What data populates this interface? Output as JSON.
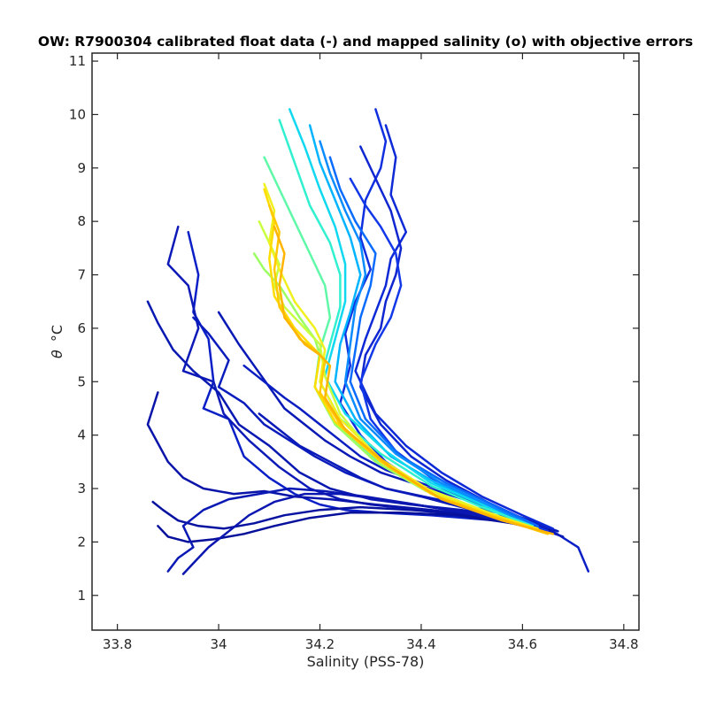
{
  "chart_data": {
    "type": "line",
    "title": "OW: R7900304 calibrated float data (-) and mapped salinity (o) with objective errors",
    "xlabel": "Salinity (PSS-78)",
    "ylabel_symbol": "θ",
    "ylabel_unit": "°C",
    "xlim": [
      33.75,
      34.83
    ],
    "ylim": [
      0.35,
      11.15
    ],
    "xticks": [
      33.8,
      34.0,
      34.2,
      34.4,
      34.6,
      34.8
    ],
    "xtick_labels": [
      "33.8",
      "34",
      "34.2",
      "34.4",
      "34.6",
      "34.8"
    ],
    "yticks": [
      1,
      2,
      3,
      4,
      5,
      6,
      7,
      8,
      9,
      10,
      11
    ],
    "ytick_labels": [
      "1",
      "2",
      "3",
      "4",
      "5",
      "6",
      "7",
      "8",
      "9",
      "10",
      "11"
    ],
    "grid": false,
    "colormap": [
      "#00008f",
      "#0020ff",
      "#00a0ff",
      "#30ffd0",
      "#a0ff60",
      "#ffe000",
      "#ffb000"
    ],
    "profiles_early": [
      {
        "color": "#0a1fc6",
        "s": [
          33.94,
          33.96,
          33.95,
          33.98,
          33.99,
          33.97,
          34.02,
          34.05,
          34.1,
          34.15,
          34.2,
          34.25,
          34.32,
          34.42,
          34.55,
          34.66,
          34.71,
          34.73
        ],
        "t": [
          7.8,
          7.0,
          6.3,
          5.8,
          5.0,
          4.5,
          4.3,
          3.6,
          3.2,
          2.9,
          2.7,
          2.6,
          2.55,
          2.5,
          2.4,
          2.2,
          1.9,
          1.45
        ]
      },
      {
        "color": "#0d1ab8",
        "s": [
          33.92,
          33.9,
          33.94,
          33.96,
          33.93,
          33.99,
          34.01,
          34.06,
          34.12,
          34.18,
          34.24,
          34.3,
          34.4,
          34.52,
          34.62,
          34.68
        ],
        "t": [
          7.9,
          7.2,
          6.8,
          6.0,
          5.2,
          5.0,
          4.4,
          3.9,
          3.4,
          3.0,
          2.8,
          2.7,
          2.6,
          2.45,
          2.3,
          2.1
        ]
      },
      {
        "color": "#0818b0",
        "s": [
          33.86,
          33.88,
          33.91,
          33.95,
          34.0,
          34.04,
          34.1,
          34.16,
          34.22,
          34.3,
          34.38,
          34.48,
          34.58,
          34.66
        ],
        "t": [
          6.5,
          6.1,
          5.6,
          5.2,
          4.8,
          4.2,
          3.8,
          3.3,
          3.0,
          2.8,
          2.7,
          2.6,
          2.45,
          2.2
        ]
      },
      {
        "color": "#0a14a8",
        "s": [
          33.88,
          33.86,
          33.9,
          33.93,
          33.97,
          34.03,
          34.09,
          34.15,
          34.22,
          34.31,
          34.42,
          34.54,
          34.64
        ],
        "t": [
          4.8,
          4.2,
          3.5,
          3.2,
          3.0,
          2.9,
          2.95,
          2.85,
          2.8,
          2.7,
          2.6,
          2.45,
          2.2
        ]
      },
      {
        "color": "#0712a0",
        "s": [
          33.87,
          33.89,
          33.92,
          33.96,
          34.01,
          34.07,
          34.13,
          34.2,
          34.28,
          34.38,
          34.5,
          34.62
        ],
        "t": [
          2.75,
          2.6,
          2.4,
          2.3,
          2.25,
          2.35,
          2.5,
          2.6,
          2.65,
          2.6,
          2.5,
          2.3
        ]
      },
      {
        "color": "#06109a",
        "s": [
          33.88,
          33.9,
          33.94,
          33.99,
          34.05,
          34.11,
          34.18,
          34.26,
          34.36,
          34.47,
          34.58,
          34.65
        ],
        "t": [
          2.3,
          2.1,
          2.0,
          2.05,
          2.15,
          2.3,
          2.45,
          2.55,
          2.55,
          2.5,
          2.35,
          2.2
        ]
      },
      {
        "color": "#0a18b4",
        "s": [
          33.9,
          33.92,
          33.95,
          33.93,
          33.97,
          34.02,
          34.08,
          34.14,
          34.21,
          34.29,
          34.39,
          34.51,
          34.61
        ],
        "t": [
          1.45,
          1.7,
          1.9,
          2.3,
          2.6,
          2.8,
          2.9,
          3.0,
          2.95,
          2.85,
          2.7,
          2.5,
          2.3
        ]
      },
      {
        "color": "#0c16b0",
        "s": [
          33.93,
          33.95,
          33.98,
          34.02,
          34.06,
          34.11,
          34.17,
          34.24,
          34.32,
          34.42,
          34.53,
          34.63
        ],
        "t": [
          1.4,
          1.6,
          1.9,
          2.2,
          2.5,
          2.75,
          2.9,
          2.9,
          2.8,
          2.65,
          2.5,
          2.25
        ]
      },
      {
        "color": "#0b1cbc",
        "s": [
          33.95,
          33.98,
          34.02,
          34.0,
          34.05,
          34.09,
          34.14,
          34.19,
          34.25,
          34.33,
          34.43,
          34.55,
          34.64
        ],
        "t": [
          6.2,
          5.9,
          5.4,
          4.9,
          4.6,
          4.2,
          3.9,
          3.6,
          3.3,
          3.0,
          2.8,
          2.55,
          2.25
        ]
      },
      {
        "color": "#0919b6",
        "s": [
          34.0,
          34.04,
          34.07,
          34.1,
          34.13,
          34.17,
          34.21,
          34.26,
          34.32,
          34.4,
          34.5,
          34.6,
          34.67
        ],
        "t": [
          6.3,
          5.7,
          5.3,
          4.9,
          4.5,
          4.2,
          3.9,
          3.6,
          3.3,
          3.05,
          2.75,
          2.45,
          2.2
        ]
      },
      {
        "color": "#0b1ec2",
        "s": [
          34.05,
          34.09,
          34.13,
          34.16,
          34.2,
          34.24,
          34.28,
          34.33,
          34.4,
          34.48,
          34.57,
          34.65
        ],
        "t": [
          5.3,
          5.0,
          4.7,
          4.5,
          4.2,
          3.9,
          3.6,
          3.35,
          3.1,
          2.85,
          2.55,
          2.25
        ]
      },
      {
        "color": "#0a1ab8",
        "s": [
          34.08,
          34.12,
          34.16,
          34.2,
          34.24,
          34.28,
          34.33,
          34.4,
          34.48,
          34.56,
          34.64
        ],
        "t": [
          4.4,
          4.1,
          3.8,
          3.6,
          3.4,
          3.2,
          3.0,
          2.85,
          2.65,
          2.45,
          2.2
        ]
      },
      {
        "color": "#1030e0",
        "s": [
          34.31,
          34.33,
          34.32,
          34.29,
          34.28,
          34.3,
          34.27,
          34.25,
          34.26,
          34.24,
          34.28,
          34.33,
          34.4,
          34.48,
          34.56,
          34.64
        ],
        "t": [
          10.1,
          9.5,
          9.0,
          8.4,
          7.7,
          7.1,
          6.5,
          5.9,
          5.3,
          4.6,
          4.0,
          3.5,
          3.05,
          2.7,
          2.45,
          2.2
        ]
      },
      {
        "color": "#0d2ad6",
        "s": [
          34.33,
          34.35,
          34.34,
          34.37,
          34.34,
          34.33,
          34.31,
          34.29,
          34.27,
          34.31,
          34.37,
          34.44,
          34.52,
          34.6,
          34.66
        ],
        "t": [
          9.8,
          9.2,
          8.5,
          7.8,
          7.3,
          6.8,
          6.3,
          5.8,
          5.2,
          4.4,
          3.8,
          3.3,
          2.85,
          2.5,
          2.25
        ]
      },
      {
        "color": "#0f26d0",
        "s": [
          34.28,
          34.31,
          34.34,
          34.36,
          34.35,
          34.33,
          34.32,
          34.29,
          34.28,
          34.32,
          34.38,
          34.45,
          34.53,
          34.61
        ],
        "t": [
          9.4,
          8.8,
          8.2,
          7.5,
          7.0,
          6.5,
          6.0,
          5.5,
          4.9,
          4.2,
          3.6,
          3.15,
          2.75,
          2.4
        ]
      },
      {
        "color": "#1238e8",
        "s": [
          34.26,
          34.29,
          34.32,
          34.35,
          34.36,
          34.34,
          34.31,
          34.28,
          34.3,
          34.35,
          34.42,
          34.5,
          34.58,
          34.65
        ],
        "t": [
          8.8,
          8.3,
          7.9,
          7.4,
          6.8,
          6.2,
          5.7,
          5.0,
          4.3,
          3.7,
          3.2,
          2.8,
          2.45,
          2.2
        ]
      }
    ],
    "profiles_late": [
      {
        "color": "#0a6cff",
        "s": [
          34.22,
          34.24,
          34.27,
          34.31,
          34.3,
          34.28,
          34.27,
          34.26,
          34.29,
          34.36,
          34.45,
          34.54,
          34.63
        ],
        "t": [
          9.2,
          8.6,
          8.0,
          7.4,
          6.8,
          6.2,
          5.6,
          5.0,
          4.3,
          3.6,
          3.1,
          2.7,
          2.3
        ]
      },
      {
        "color": "#0a8cff",
        "s": [
          34.2,
          34.22,
          34.25,
          34.28,
          34.29,
          34.27,
          34.26,
          34.25,
          34.28,
          34.35,
          34.44,
          34.53,
          34.62
        ],
        "t": [
          9.5,
          8.9,
          8.2,
          7.6,
          7.0,
          6.4,
          5.7,
          5.0,
          4.3,
          3.65,
          3.1,
          2.7,
          2.3
        ]
      },
      {
        "color": "#00b4ff",
        "s": [
          34.18,
          34.2,
          34.23,
          34.26,
          34.28,
          34.26,
          34.24,
          34.23,
          34.27,
          34.34,
          34.43,
          34.52,
          34.61
        ],
        "t": [
          9.8,
          9.1,
          8.4,
          7.7,
          7.0,
          6.3,
          5.7,
          5.0,
          4.3,
          3.6,
          3.1,
          2.7,
          2.3
        ]
      },
      {
        "color": "#10d8f0",
        "s": [
          34.14,
          34.17,
          34.2,
          34.23,
          34.25,
          34.25,
          34.23,
          34.21,
          34.25,
          34.33,
          34.42,
          34.52,
          34.61
        ],
        "t": [
          10.1,
          9.4,
          8.6,
          7.9,
          7.2,
          6.5,
          5.8,
          5.1,
          4.4,
          3.7,
          3.1,
          2.7,
          2.3
        ]
      },
      {
        "color": "#30f0d0",
        "s": [
          34.12,
          34.15,
          34.18,
          34.22,
          34.24,
          34.24,
          34.22,
          34.2,
          34.24,
          34.32,
          34.42,
          34.52,
          34.62
        ],
        "t": [
          9.9,
          9.1,
          8.3,
          7.6,
          7.0,
          6.4,
          5.7,
          5.0,
          4.3,
          3.65,
          3.05,
          2.65,
          2.3
        ]
      },
      {
        "color": "#60f8a8",
        "s": [
          34.09,
          34.12,
          34.15,
          34.18,
          34.21,
          34.22,
          34.2,
          34.19,
          34.23,
          34.31,
          34.41,
          34.51,
          34.61
        ],
        "t": [
          9.2,
          8.6,
          8.0,
          7.4,
          6.8,
          6.2,
          5.6,
          4.9,
          4.2,
          3.55,
          3.0,
          2.6,
          2.3
        ]
      },
      {
        "color": "#9cff62",
        "s": [
          34.07,
          34.09,
          34.12,
          34.14,
          34.16,
          34.19,
          34.2,
          34.19,
          34.23,
          34.31,
          34.41,
          34.52,
          34.62
        ],
        "t": [
          7.4,
          7.1,
          6.8,
          6.5,
          6.2,
          5.8,
          5.5,
          4.9,
          4.2,
          3.5,
          2.95,
          2.55,
          2.25
        ]
      },
      {
        "color": "#c8ff40",
        "s": [
          34.08,
          34.1,
          34.12,
          34.11,
          34.13,
          34.17,
          34.2,
          34.21,
          34.24,
          34.31,
          34.41,
          34.52,
          34.62
        ],
        "t": [
          8.0,
          7.6,
          7.2,
          6.8,
          6.4,
          6.0,
          5.7,
          5.1,
          4.4,
          3.6,
          3.0,
          2.6,
          2.25
        ]
      },
      {
        "color": "#f0f020",
        "s": [
          34.09,
          34.11,
          34.1,
          34.12,
          34.15,
          34.19,
          34.21,
          34.2,
          34.24,
          34.32,
          34.42,
          34.53,
          34.63
        ],
        "t": [
          8.7,
          8.2,
          7.6,
          7.1,
          6.5,
          6.0,
          5.6,
          5.0,
          4.3,
          3.55,
          2.95,
          2.55,
          2.25
        ]
      },
      {
        "color": "#ffdc00",
        "s": [
          34.09,
          34.11,
          34.1,
          34.11,
          34.15,
          34.18,
          34.2,
          34.19,
          34.23,
          34.32,
          34.42,
          34.54,
          34.64
        ],
        "t": [
          8.6,
          8.0,
          7.3,
          6.6,
          6.0,
          5.7,
          5.5,
          4.9,
          4.25,
          3.5,
          2.9,
          2.5,
          2.2
        ]
      },
      {
        "color": "#ffc800",
        "s": [
          34.1,
          34.12,
          34.11,
          34.12,
          34.16,
          34.19,
          34.21,
          34.2,
          34.24,
          34.33,
          34.43,
          34.55,
          34.65
        ],
        "t": [
          8.3,
          7.8,
          7.1,
          6.4,
          5.8,
          5.6,
          5.4,
          4.8,
          4.2,
          3.45,
          2.85,
          2.45,
          2.15
        ]
      },
      {
        "color": "#ffb400",
        "s": [
          34.11,
          34.13,
          34.12,
          34.13,
          34.17,
          34.2,
          34.22,
          34.21,
          34.25,
          34.34,
          34.44,
          34.56,
          34.66
        ],
        "t": [
          7.9,
          7.4,
          6.8,
          6.2,
          5.7,
          5.5,
          5.3,
          4.7,
          4.1,
          3.4,
          2.8,
          2.4,
          2.15
        ]
      }
    ]
  }
}
